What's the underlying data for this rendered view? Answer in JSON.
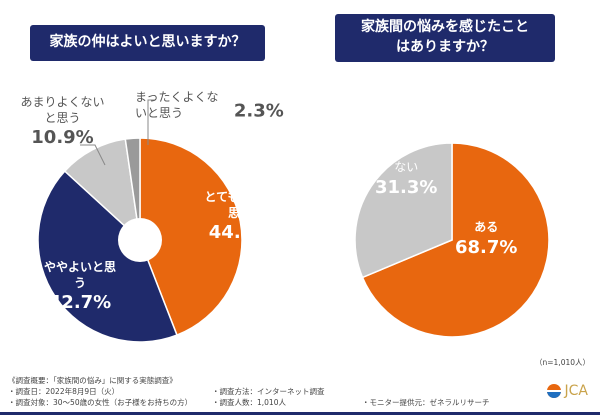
{
  "chart_data": [
    {
      "type": "pie",
      "title": "家族の仲はよいと思いますか？",
      "categories": [
        "とてもよいと思う",
        "ややよいと思う",
        "あまりよくないと思う",
        "まったくよくないと思う"
      ],
      "values": [
        44.1,
        42.7,
        10.9,
        2.3
      ],
      "labels": [
        "44.1%",
        "42.7%",
        "10.9%",
        "2.3%"
      ],
      "colors": [
        "#e8670f",
        "#1f2a6b",
        "#c8c8c8",
        "#9a9a9a"
      ]
    },
    {
      "type": "pie",
      "title": "家族間の悩みを感じたことはありますか？",
      "categories": [
        "ある",
        "ない"
      ],
      "values": [
        68.7,
        31.3
      ],
      "labels": [
        "68.7%",
        "31.3%"
      ],
      "colors": [
        "#e8670f",
        "#c8c8c8"
      ]
    }
  ],
  "n_label": "（n=1,010人）",
  "footer": {
    "l1": "《調査概要：「家族間の悩み」に関する実態調査》",
    "l2": "・調査日：2022年8月9日（火）",
    "l3": "・調査対象：30〜50歳の女性（お子様をお持ちの方）",
    "m2": "・調査方法：インターネット調査",
    "m3": "・調査人数：1,010人",
    "r3": "・モニター提供元：ゼネラルリサーチ"
  },
  "logo": "JCA"
}
